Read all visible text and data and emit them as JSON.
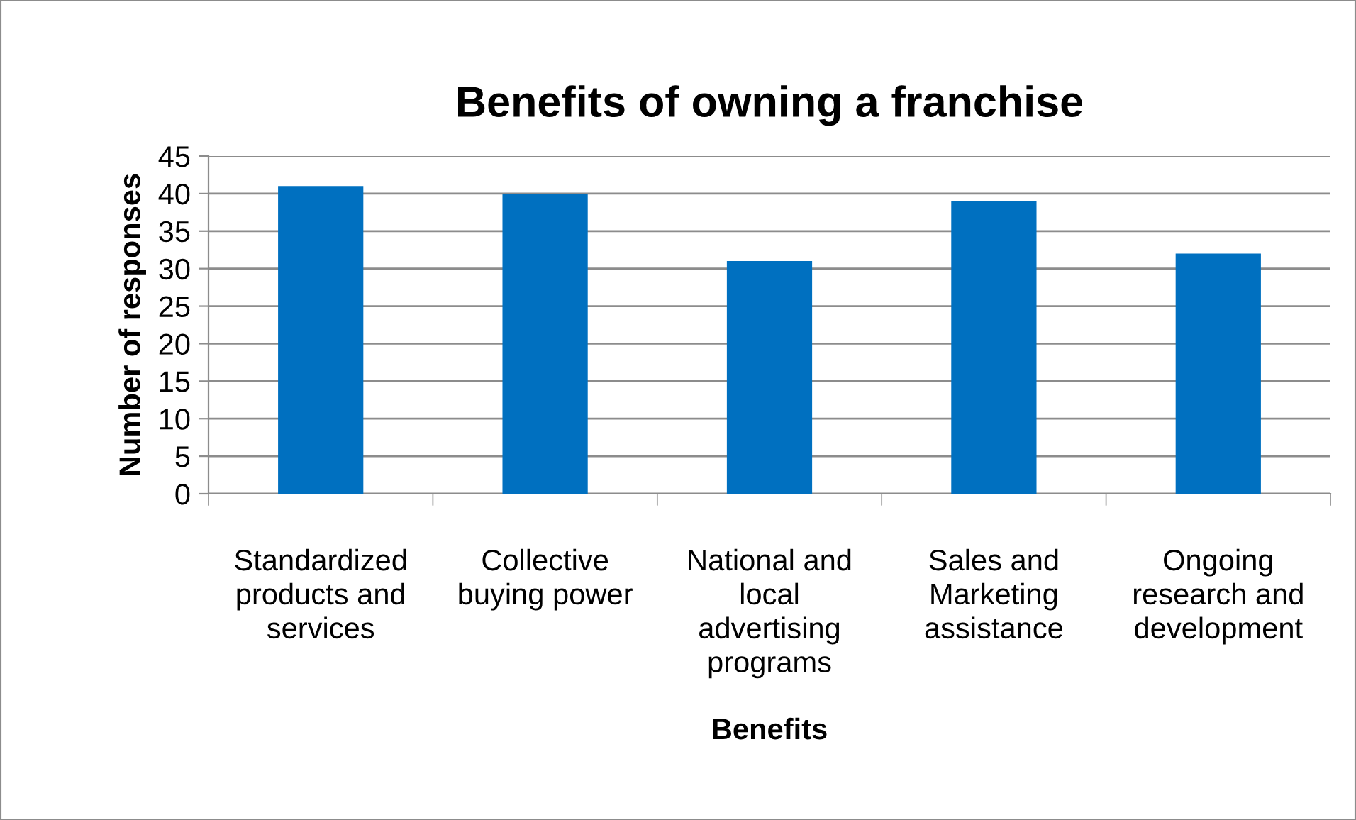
{
  "chart_data": {
    "type": "bar",
    "title": "Benefits of owning a franchise",
    "xlabel": "Benefits",
    "ylabel": "Number of responses",
    "categories": [
      "Standardized\nproducts and\nservices",
      "Collective\nbuying power",
      "National and\nlocal\nadvertising\nprograms",
      "Sales and\nMarketing\nassistance",
      "Ongoing\nresearch and\ndevelopment"
    ],
    "values": [
      41,
      40,
      31,
      39,
      32
    ],
    "color": "#0070c0",
    "ylim": [
      0,
      45
    ],
    "yticks": [
      0,
      5,
      10,
      15,
      20,
      25,
      30,
      35,
      40,
      45
    ],
    "grid": "y",
    "legend": false
  }
}
